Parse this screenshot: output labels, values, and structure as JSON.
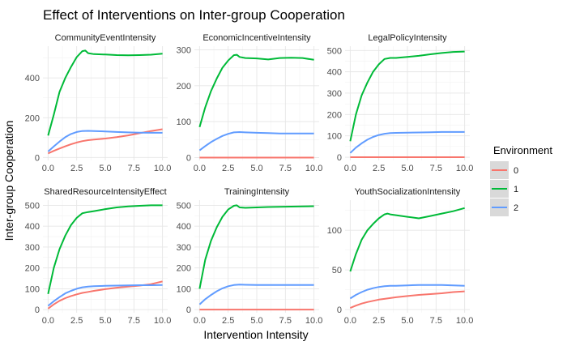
{
  "chart_data": {
    "type": "line",
    "title": "Effect of Interventions on Inter-group Cooperation",
    "xlabel": "Intervention Intensity",
    "ylabel": "Inter-group Cooperation",
    "grid": true,
    "legend": {
      "title": "Environment",
      "position": "right",
      "entries": [
        {
          "label": "0",
          "color": "#F8766D"
        },
        {
          "label": "1",
          "color": "#00BA38"
        },
        {
          "label": "2",
          "color": "#619CFF"
        }
      ]
    },
    "x_ticks": [
      "0.0",
      "2.5",
      "5.0",
      "7.5",
      "10.0"
    ],
    "xlim": [
      0,
      10
    ],
    "panels": [
      {
        "strip": "CommunityEventIntensity",
        "ylim": [
          -15,
          560
        ],
        "yticks": [
          0,
          200,
          400
        ],
        "series": [
          {
            "env": "0",
            "color": "#F8766D",
            "x": [
              0,
              0.5,
              1,
              1.5,
              2,
              2.5,
              3,
              3.5,
              4,
              5,
              6,
              7,
              8,
              9,
              10
            ],
            "y": [
              20,
              33,
              45,
              56,
              66,
              75,
              82,
              87,
              90,
              95,
              102,
              111,
              122,
              133,
              142
            ]
          },
          {
            "env": "1",
            "color": "#00BA38",
            "x": [
              0,
              0.5,
              1,
              1.5,
              2,
              2.5,
              3,
              3.25,
              3.5,
              4,
              5,
              6,
              7,
              8,
              9,
              10
            ],
            "y": [
              110,
              215,
              330,
              400,
              455,
              505,
              535,
              538,
              525,
              520,
              518,
              515,
              514,
              515,
              517,
              522
            ]
          },
          {
            "env": "2",
            "color": "#619CFF",
            "x": [
              0,
              0.5,
              1,
              1.5,
              2,
              2.5,
              3,
              3.5,
              4,
              5,
              6,
              7,
              8,
              9,
              10
            ],
            "y": [
              30,
              55,
              80,
              102,
              118,
              128,
              133,
              134,
              133,
              131,
              128,
              126,
              125,
              124,
              124
            ]
          }
        ]
      },
      {
        "strip": "EconomicIncentiveIntensity",
        "ylim": [
          -8,
          310
        ],
        "yticks": [
          0,
          100,
          200,
          300
        ],
        "series": [
          {
            "env": "0",
            "color": "#F8766D",
            "x": [
              0,
              10
            ],
            "y": [
              0,
              0
            ]
          },
          {
            "env": "1",
            "color": "#00BA38",
            "x": [
              0,
              0.5,
              1,
              1.5,
              2,
              2.5,
              3,
              3.25,
              3.5,
              4,
              5,
              6,
              7,
              8,
              9,
              10
            ],
            "y": [
              85,
              140,
              185,
              220,
              250,
              270,
              285,
              286,
              280,
              277,
              276,
              273,
              277,
              278,
              277,
              272
            ]
          },
          {
            "env": "2",
            "color": "#619CFF",
            "x": [
              0,
              0.5,
              1,
              1.5,
              2,
              2.5,
              3,
              3.5,
              4,
              5,
              6,
              7,
              8,
              9,
              10
            ],
            "y": [
              20,
              32,
              43,
              52,
              60,
              66,
              70,
              71,
              70,
              69,
              68,
              67,
              67,
              67,
              67
            ]
          }
        ]
      },
      {
        "strip": "LegalPolicyIntensity",
        "ylim": [
          -15,
          520
        ],
        "yticks": [
          0,
          100,
          200,
          300,
          400,
          500
        ],
        "series": [
          {
            "env": "0",
            "color": "#F8766D",
            "x": [
              0,
              10
            ],
            "y": [
              0,
              0
            ]
          },
          {
            "env": "1",
            "color": "#00BA38",
            "x": [
              0,
              0.5,
              1,
              1.5,
              2,
              2.5,
              3,
              3.5,
              4,
              5,
              6,
              7,
              8,
              9,
              10
            ],
            "y": [
              75,
              200,
              290,
              350,
              400,
              435,
              460,
              465,
              465,
              470,
              475,
              482,
              488,
              493,
              495
            ]
          },
          {
            "env": "2",
            "color": "#619CFF",
            "x": [
              0,
              0.5,
              1,
              1.5,
              2,
              2.5,
              3,
              3.5,
              4,
              5,
              6,
              7,
              8,
              9,
              10
            ],
            "y": [
              20,
              45,
              65,
              82,
              95,
              104,
              110,
              113,
              114,
              115,
              116,
              117,
              118,
              118,
              118
            ]
          }
        ]
      },
      {
        "strip": "SharedResourceIntensityEffect",
        "ylim": [
          -15,
          525
        ],
        "yticks": [
          0,
          100,
          200,
          300,
          400,
          500
        ],
        "series": [
          {
            "env": "0",
            "color": "#F8766D",
            "x": [
              0,
              0.5,
              1,
              1.5,
              2,
              2.5,
              3,
              3.5,
              4,
              5,
              6,
              7,
              8,
              9,
              10
            ],
            "y": [
              5,
              25,
              42,
              55,
              65,
              73,
              80,
              85,
              90,
              98,
              105,
              110,
              115,
              122,
              135
            ]
          },
          {
            "env": "1",
            "color": "#00BA38",
            "x": [
              0,
              0.5,
              1,
              1.5,
              2,
              2.5,
              3,
              3.5,
              4,
              5,
              6,
              7,
              8,
              9,
              10
            ],
            "y": [
              75,
              200,
              290,
              355,
              405,
              440,
              462,
              468,
              472,
              482,
              490,
              495,
              498,
              500,
              500
            ]
          },
          {
            "env": "2",
            "color": "#619CFF",
            "x": [
              0,
              0.5,
              1,
              1.5,
              2,
              2.5,
              3,
              3.5,
              4,
              5,
              6,
              7,
              8,
              9,
              10
            ],
            "y": [
              18,
              40,
              60,
              78,
              90,
              100,
              107,
              110,
              112,
              114,
              115,
              116,
              117,
              117,
              118
            ]
          }
        ]
      },
      {
        "strip": "TrainingIntensity",
        "ylim": [
          -15,
          525
        ],
        "yticks": [
          0,
          100,
          200,
          300,
          400,
          500
        ],
        "series": [
          {
            "env": "0",
            "color": "#F8766D",
            "x": [
              0,
              10
            ],
            "y": [
              0,
              0
            ]
          },
          {
            "env": "1",
            "color": "#00BA38",
            "x": [
              0,
              0.5,
              1,
              1.5,
              2,
              2.5,
              3,
              3.25,
              3.5,
              4,
              5,
              6,
              7,
              8,
              9,
              10
            ],
            "y": [
              100,
              240,
              330,
              395,
              445,
              480,
              498,
              500,
              490,
              488,
              490,
              492,
              493,
              494,
              495,
              496
            ]
          },
          {
            "env": "2",
            "color": "#619CFF",
            "x": [
              0,
              0.5,
              1,
              1.5,
              2,
              2.5,
              3,
              3.5,
              4,
              5,
              6,
              7,
              8,
              9,
              10
            ],
            "y": [
              25,
              50,
              70,
              88,
              102,
              112,
              118,
              120,
              119,
              118,
              118,
              118,
              118,
              118,
              118
            ]
          }
        ]
      },
      {
        "strip": "YouthSocializationIntensity",
        "ylim": [
          -4,
          138
        ],
        "yticks": [
          0,
          50,
          100
        ],
        "series": [
          {
            "env": "0",
            "color": "#F8766D",
            "x": [
              0,
              0.5,
              1,
              1.5,
              2,
              2.5,
              3,
              3.5,
              4,
              5,
              6,
              7,
              8,
              9,
              10
            ],
            "y": [
              2,
              5,
              7.5,
              9.5,
              11,
              12.5,
              13.5,
              14.5,
              15.5,
              17,
              18.5,
              19.5,
              20.5,
              22,
              23
            ]
          },
          {
            "env": "1",
            "color": "#00BA38",
            "x": [
              0,
              0.5,
              1,
              1.5,
              2,
              2.5,
              3,
              3.25,
              3.5,
              4,
              5,
              6,
              7,
              8,
              9,
              10
            ],
            "y": [
              48,
              70,
              88,
              100,
              108,
              115,
              120,
              121,
              120,
              119,
              117,
              115,
              118,
              121,
              124,
              128
            ]
          },
          {
            "env": "2",
            "color": "#619CFF",
            "x": [
              0,
              0.5,
              1,
              1.5,
              2,
              2.5,
              3,
              3.5,
              4,
              5,
              6,
              7,
              8,
              9,
              10
            ],
            "y": [
              14,
              18.5,
              22,
              25,
              27,
              28.5,
              29.5,
              30,
              30,
              30.5,
              31,
              31,
              31,
              30.5,
              30
            ]
          }
        ]
      }
    ]
  }
}
